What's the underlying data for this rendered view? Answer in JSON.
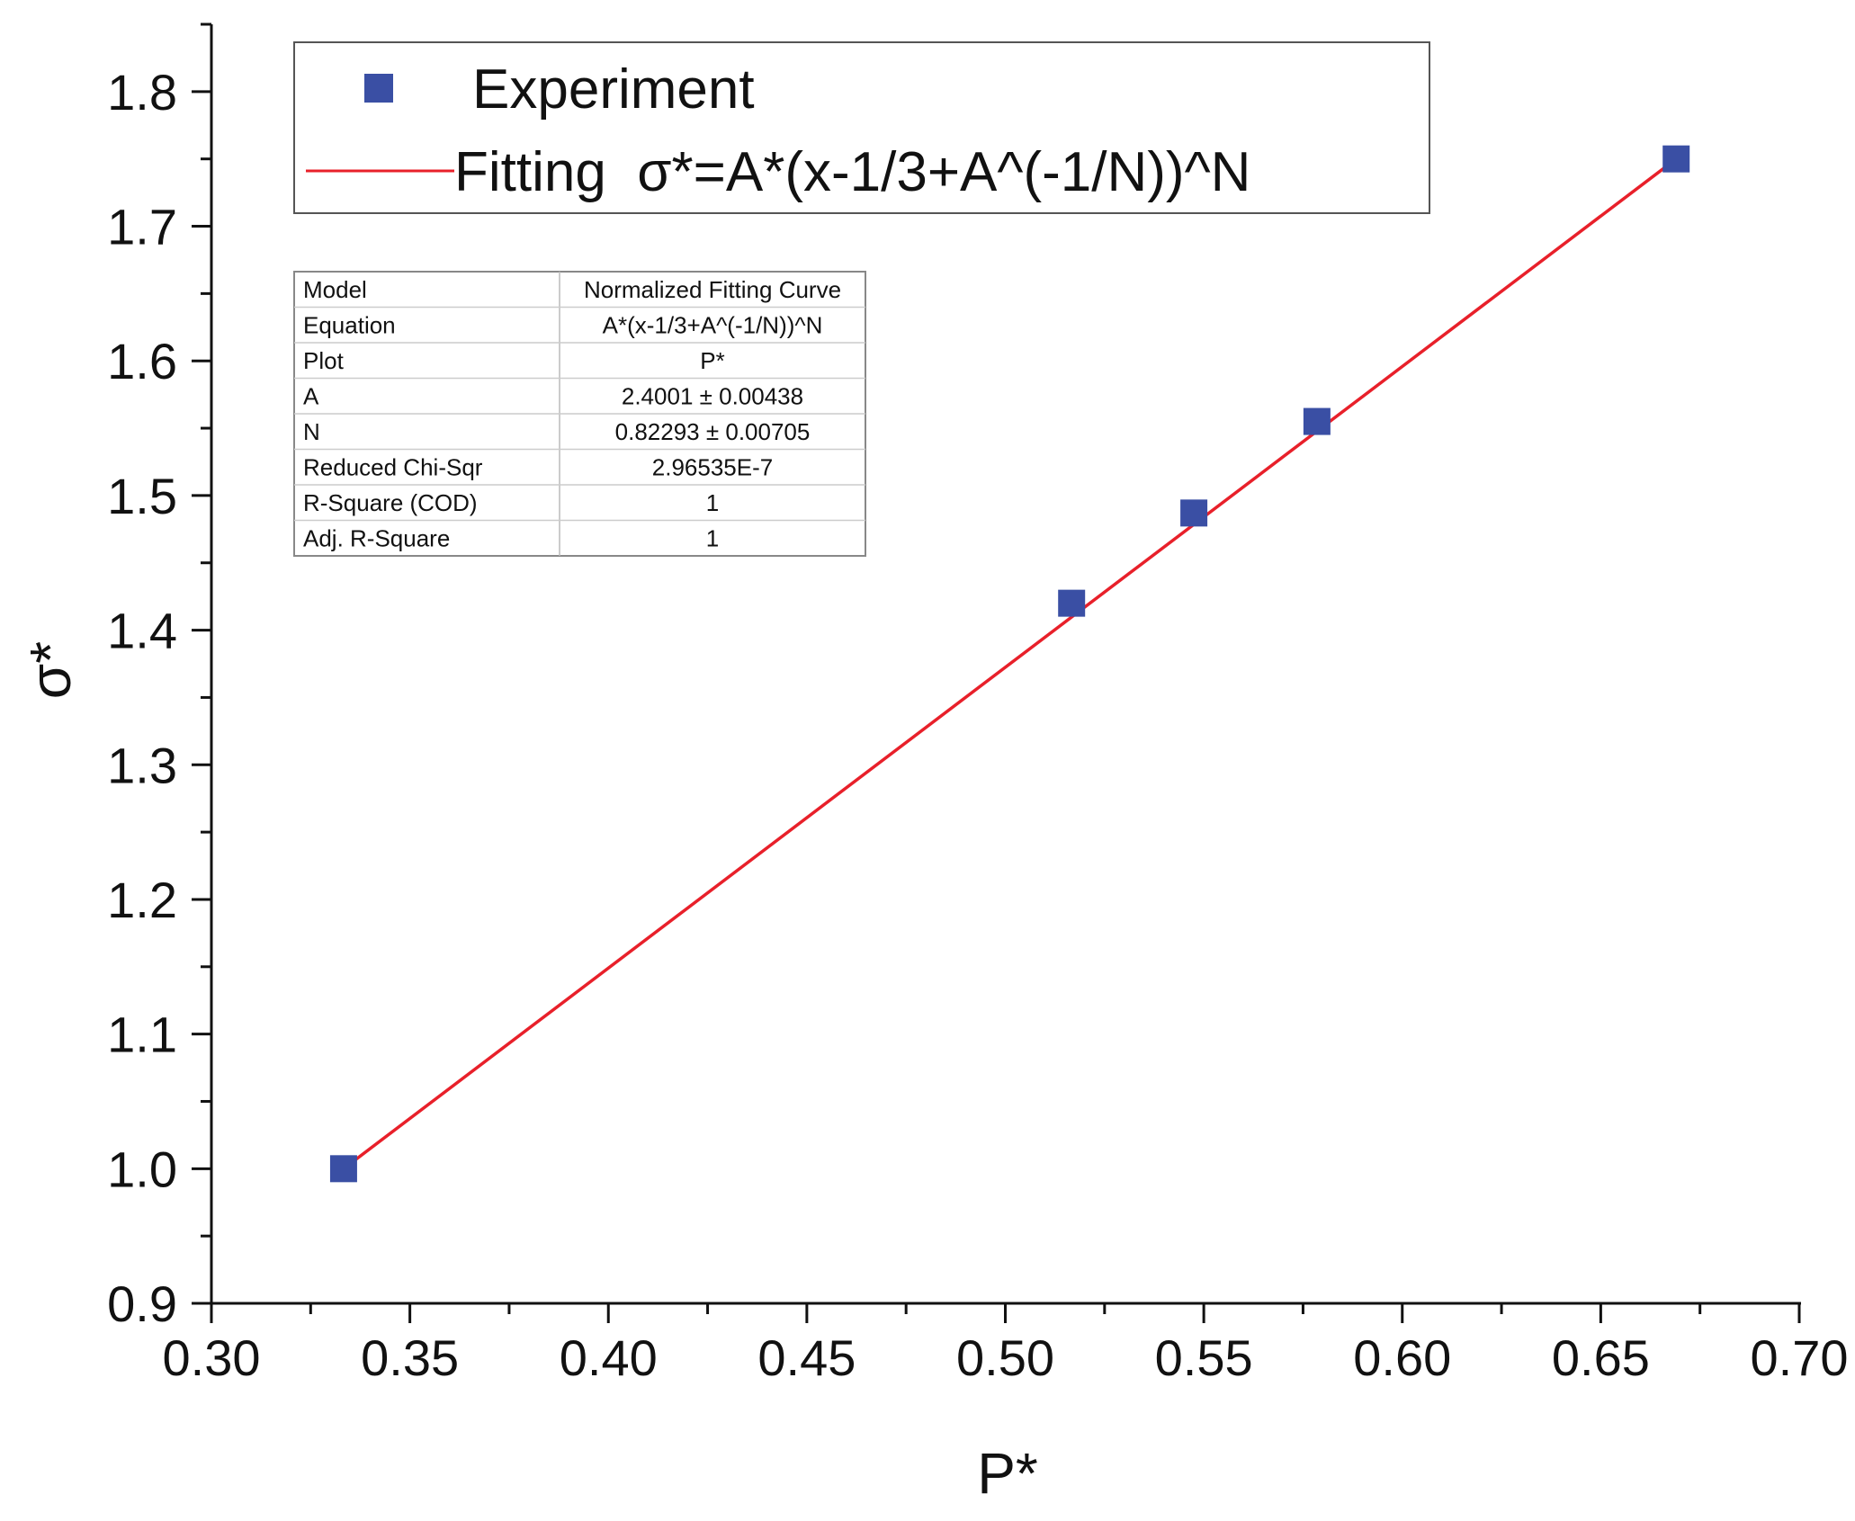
{
  "chart_data": {
    "type": "scatter",
    "xlabel": "P*",
    "ylabel": "σ*",
    "xlim": [
      0.3,
      0.7
    ],
    "ylim": [
      0.9,
      1.85
    ],
    "x_ticks": [
      "0.30",
      "0.35",
      "0.40",
      "0.45",
      "0.50",
      "0.55",
      "0.60",
      "0.65",
      "0.70"
    ],
    "y_ticks": [
      "0.9",
      "1.0",
      "1.1",
      "1.2",
      "1.3",
      "1.4",
      "1.5",
      "1.6",
      "1.7",
      "1.8"
    ],
    "grid": false,
    "legend_position": "top",
    "series": [
      {
        "name": "Experiment",
        "marker": "square",
        "color": "#3a4fa4",
        "x": [
          0.3333,
          0.5167,
          0.5475,
          0.5785,
          0.669
        ],
        "y": [
          1.0,
          1.42,
          1.487,
          1.555,
          1.75
        ]
      },
      {
        "name": "Fitting  σ*=A*(x-1/3+A^(-1/N))^N",
        "type": "line",
        "color": "#e8202a",
        "x": [
          0.3333,
          0.669
        ],
        "y": [
          1.0,
          1.75
        ]
      }
    ],
    "fit_table": {
      "rows": [
        [
          "Model",
          "Normalized Fitting Curve"
        ],
        [
          "Equation",
          "A*(x-1/3+A^(-1/N))^N"
        ],
        [
          "Plot",
          "P*"
        ],
        [
          "A",
          "2.4001 ± 0.00438"
        ],
        [
          "N",
          "0.82293 ± 0.00705"
        ],
        [
          "Reduced Chi-Sqr",
          "2.96535E-7"
        ],
        [
          "R-Square (COD)",
          "1"
        ],
        [
          "Adj. R-Square",
          "1"
        ]
      ]
    }
  }
}
